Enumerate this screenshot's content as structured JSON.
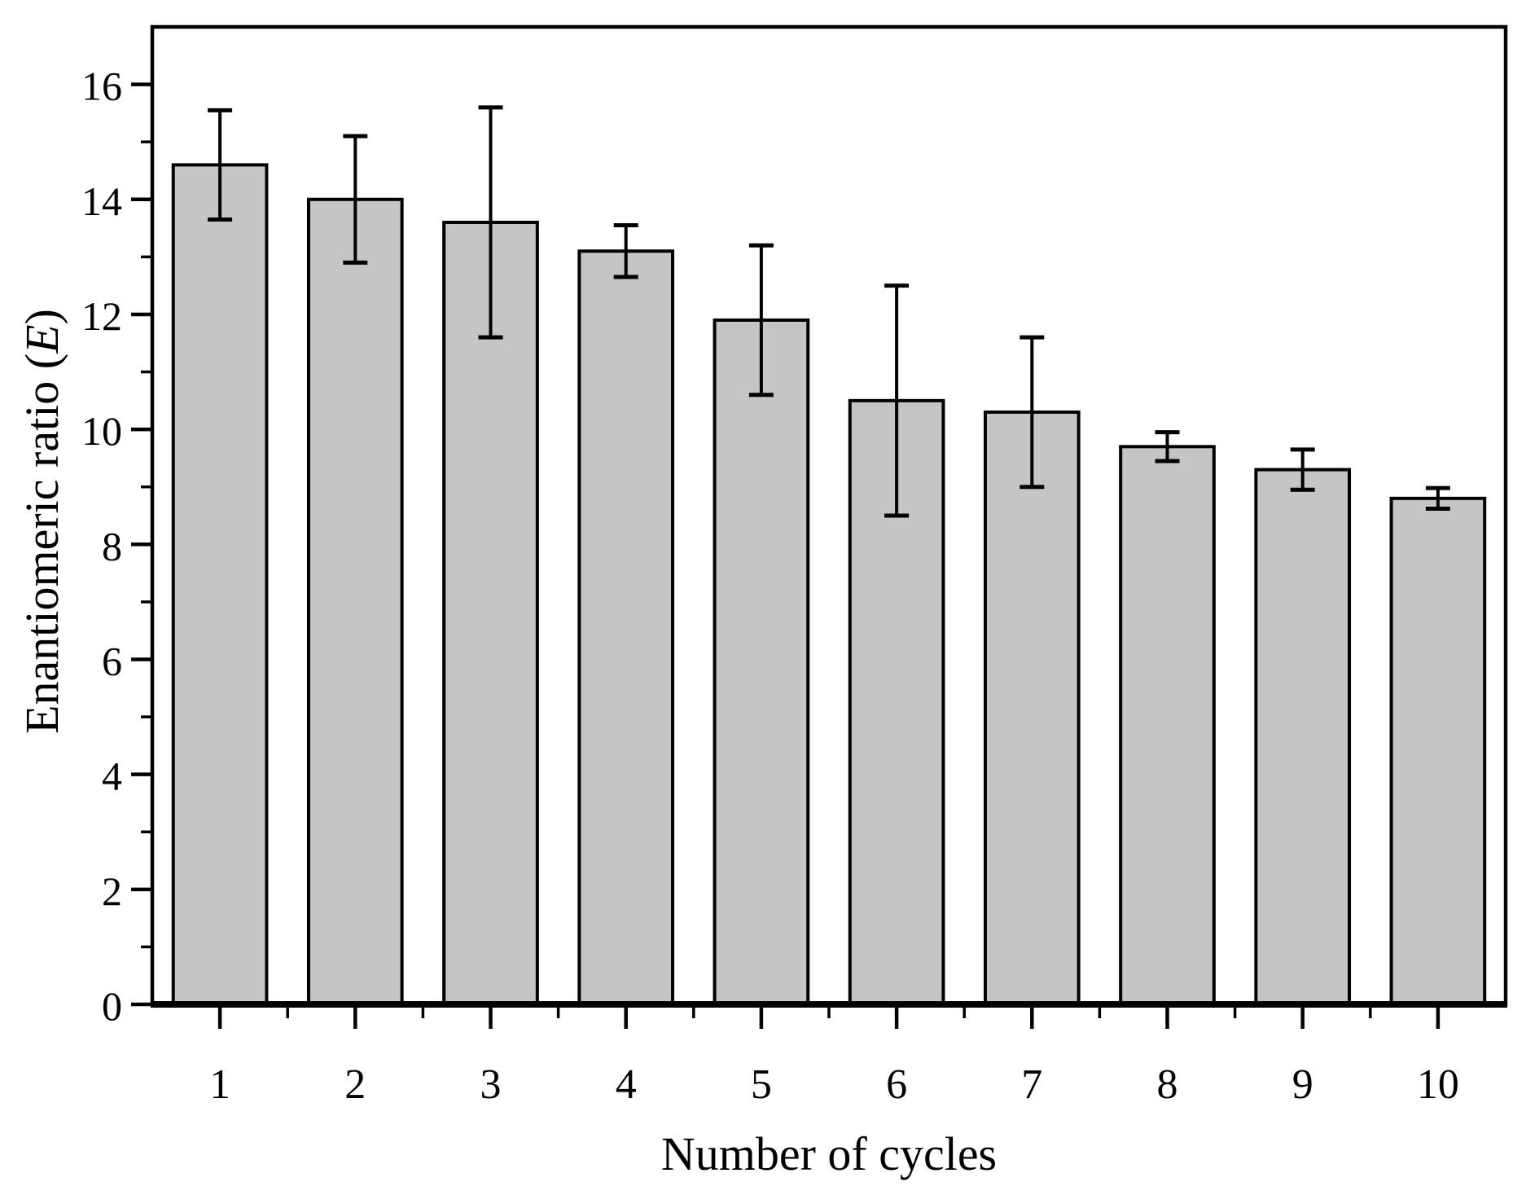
{
  "chart_data": {
    "type": "bar",
    "title": "",
    "xlabel": "Number of cycles",
    "ylabel": "Enantiomeric ratio (E)",
    "ylabel_prefix": "Enantiomeric ratio (",
    "ylabel_italic": "E",
    "ylabel_suffix": ")",
    "categories": [
      "1",
      "2",
      "3",
      "4",
      "5",
      "6",
      "7",
      "8",
      "9",
      "10"
    ],
    "values": [
      14.6,
      14.0,
      13.6,
      13.1,
      11.9,
      10.5,
      10.3,
      9.7,
      9.3,
      8.8
    ],
    "errors": [
      0.95,
      1.1,
      2.0,
      0.45,
      1.3,
      2.0,
      1.3,
      0.25,
      0.35,
      0.18
    ],
    "ylim": [
      0,
      17
    ],
    "ytick_major_values": [
      0,
      2,
      4,
      6,
      8,
      10,
      12,
      14,
      16
    ],
    "ytick_minor_values": [
      1,
      3,
      5,
      7,
      9,
      11,
      13,
      15
    ],
    "grid": false,
    "legend_position": "none",
    "bar_fill": "#c5c5c5",
    "bar_edge": "#000000",
    "error_color": "#000000",
    "axis_color": "#000000",
    "background": "#ffffff"
  }
}
